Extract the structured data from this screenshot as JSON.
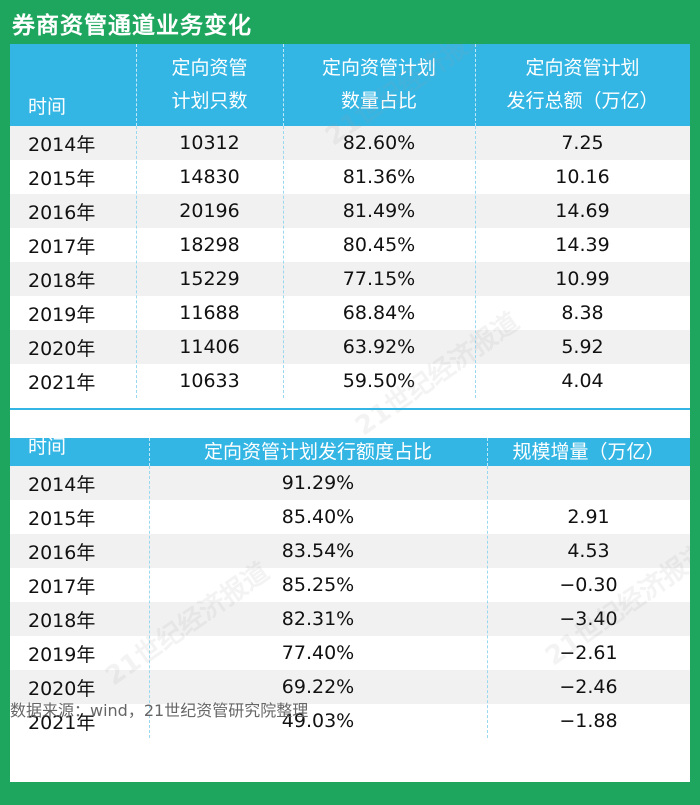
{
  "title": "券商资管通道业务变化",
  "table1": {
    "headers": [
      [
        "时间"
      ],
      [
        "定向资管",
        "计划只数"
      ],
      [
        "定向资管计划",
        "数量占比"
      ],
      [
        "定向资管计划",
        "发行总额（万亿）"
      ]
    ],
    "rows": [
      [
        "2014年",
        "10312",
        "82.60%",
        "7.25"
      ],
      [
        "2015年",
        "14830",
        "81.36%",
        "10.16"
      ],
      [
        "2016年",
        "20196",
        "81.49%",
        "14.69"
      ],
      [
        "2017年",
        "18298",
        "80.45%",
        "14.39"
      ],
      [
        "2018年",
        "15229",
        "77.15%",
        "10.99"
      ],
      [
        "2019年",
        "11688",
        "68.84%",
        "8.38"
      ],
      [
        "2020年",
        "11406",
        "63.92%",
        "5.92"
      ],
      [
        "2021年",
        "10633",
        "59.50%",
        "4.04"
      ]
    ]
  },
  "table2": {
    "headers": [
      "时间",
      "定向资管计划发行额度占比",
      "规模增量（万亿）"
    ],
    "rows": [
      [
        "2014年",
        "91.29%",
        ""
      ],
      [
        "2015年",
        "85.40%",
        "2.91"
      ],
      [
        "2016年",
        "83.54%",
        "4.53"
      ],
      [
        "2017年",
        "85.25%",
        "−0.30"
      ],
      [
        "2018年",
        "82.31%",
        "−3.40"
      ],
      [
        "2019年",
        "77.40%",
        "−2.61"
      ],
      [
        "2020年",
        "69.22%",
        "−2.46"
      ],
      [
        "2021年",
        "49.03%",
        "−1.88"
      ]
    ]
  },
  "source": "数据来源：wind，21世纪资管研究院整理",
  "watermark": "21世纪经济报道",
  "colors": {
    "background": "#1ea65f",
    "header": "#34b6e4",
    "stripe": "#f1f1f1"
  },
  "chart_data": [
    {
      "type": "table",
      "columns": [
        "时间",
        "定向资管计划只数",
        "定向资管计划数量占比",
        "定向资管计划发行总额（万亿）"
      ],
      "x": [
        "2014年",
        "2015年",
        "2016年",
        "2017年",
        "2018年",
        "2019年",
        "2020年",
        "2021年"
      ],
      "series": [
        {
          "name": "定向资管计划只数",
          "values": [
            10312,
            14830,
            20196,
            18298,
            15229,
            11688,
            11406,
            10633
          ]
        },
        {
          "name": "定向资管计划数量占比",
          "values": [
            82.6,
            81.36,
            81.49,
            80.45,
            77.15,
            68.84,
            63.92,
            59.5
          ]
        },
        {
          "name": "定向资管计划发行总额（万亿）",
          "values": [
            7.25,
            10.16,
            14.69,
            14.39,
            10.99,
            8.38,
            5.92,
            4.04
          ]
        }
      ]
    },
    {
      "type": "table",
      "columns": [
        "时间",
        "定向资管计划发行额度占比",
        "规模增量（万亿）"
      ],
      "x": [
        "2014年",
        "2015年",
        "2016年",
        "2017年",
        "2018年",
        "2019年",
        "2020年",
        "2021年"
      ],
      "series": [
        {
          "name": "定向资管计划发行额度占比",
          "values": [
            91.29,
            85.4,
            83.54,
            85.25,
            82.31,
            77.4,
            69.22,
            49.03
          ]
        },
        {
          "name": "规模增量（万亿）",
          "values": [
            null,
            2.91,
            4.53,
            -0.3,
            -3.4,
            -2.61,
            -2.46,
            -1.88
          ]
        }
      ]
    }
  ]
}
